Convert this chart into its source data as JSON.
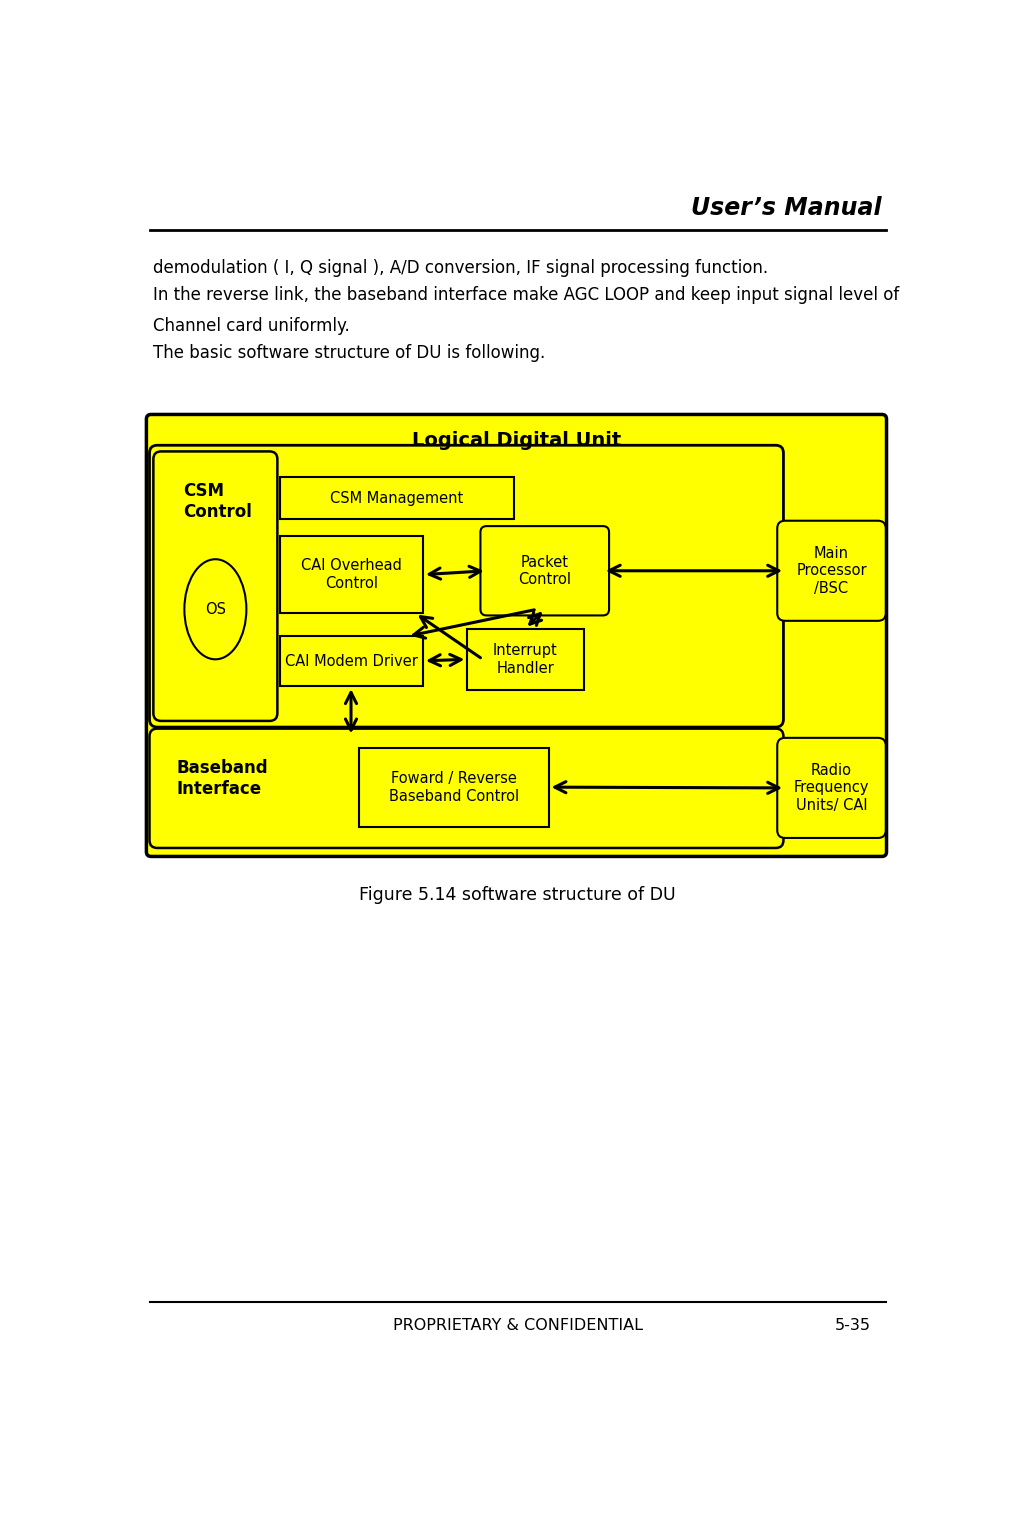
{
  "title_right": "User’s Manual",
  "footer_left": "PROPRIETARY & CONFIDENTIAL",
  "footer_right": "5-35",
  "body_lines": [
    "demodulation ( I, Q signal ), A/D conversion, IF signal processing function.",
    "In the reverse link, the baseband interface make AGC LOOP and keep input signal level of",
    "Channel card uniformly.",
    "The basic software structure of DU is following."
  ],
  "figure_caption": "Figure 5.14 software structure of DU",
  "diagram_title": "Logical Digital Unit",
  "bg_color": "#FFFF00",
  "box_edge": "#000000"
}
